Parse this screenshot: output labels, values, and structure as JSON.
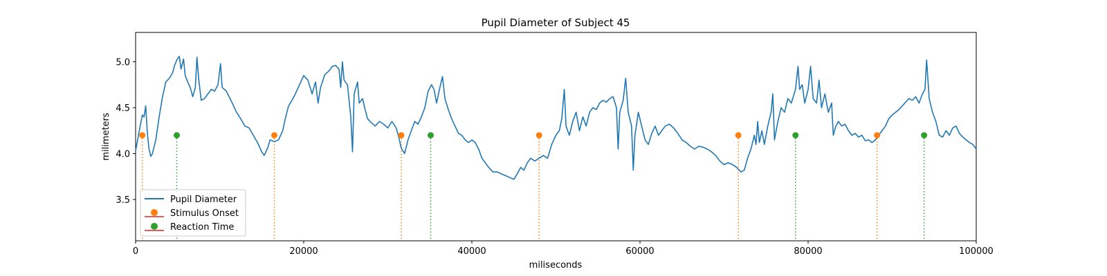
{
  "chart_data": {
    "type": "line",
    "title": "Pupil Diameter of Subject 45",
    "xlabel": "miliseconds",
    "ylabel": "milimeters",
    "xlim": [
      0,
      100000
    ],
    "ylim": [
      3.05,
      5.32
    ],
    "x_ticks": [
      0,
      20000,
      40000,
      60000,
      80000,
      100000
    ],
    "y_ticks": [
      3.5,
      4.0,
      4.5,
      5.0
    ],
    "grid": false,
    "legend_position": "lower-left",
    "colors": {
      "pupil": "#1f77b4",
      "stimulus": "#ff7f0e",
      "reaction": "#2ca02c",
      "stem_base": "#d62728"
    },
    "series": [
      {
        "name": "Pupil Diameter",
        "points": [
          [
            0,
            4.03
          ],
          [
            500,
            4.28
          ],
          [
            800,
            4.42
          ],
          [
            1000,
            4.4
          ],
          [
            1200,
            4.52
          ],
          [
            1400,
            4.22
          ],
          [
            1600,
            4.05
          ],
          [
            1800,
            3.97
          ],
          [
            2000,
            4.0
          ],
          [
            2400,
            4.15
          ],
          [
            2800,
            4.4
          ],
          [
            3200,
            4.62
          ],
          [
            3600,
            4.78
          ],
          [
            4000,
            4.82
          ],
          [
            4400,
            4.88
          ],
          [
            4600,
            4.95
          ],
          [
            4900,
            5.02
          ],
          [
            5200,
            5.06
          ],
          [
            5400,
            4.92
          ],
          [
            5700,
            5.03
          ],
          [
            5900,
            4.85
          ],
          [
            6200,
            4.78
          ],
          [
            6500,
            4.72
          ],
          [
            6800,
            4.62
          ],
          [
            7100,
            4.72
          ],
          [
            7300,
            5.05
          ],
          [
            7500,
            4.82
          ],
          [
            7800,
            4.58
          ],
          [
            8200,
            4.6
          ],
          [
            8600,
            4.65
          ],
          [
            9000,
            4.7
          ],
          [
            9400,
            4.68
          ],
          [
            9800,
            4.75
          ],
          [
            10100,
            4.98
          ],
          [
            10300,
            4.72
          ],
          [
            10800,
            4.68
          ],
          [
            11500,
            4.55
          ],
          [
            12000,
            4.45
          ],
          [
            12500,
            4.38
          ],
          [
            13000,
            4.3
          ],
          [
            13500,
            4.28
          ],
          [
            14000,
            4.2
          ],
          [
            14500,
            4.12
          ],
          [
            15000,
            4.02
          ],
          [
            15300,
            3.98
          ],
          [
            15700,
            4.06
          ],
          [
            16000,
            4.15
          ],
          [
            16500,
            4.13
          ],
          [
            17000,
            4.15
          ],
          [
            17500,
            4.25
          ],
          [
            17800,
            4.38
          ],
          [
            18200,
            4.52
          ],
          [
            18600,
            4.58
          ],
          [
            19000,
            4.65
          ],
          [
            19500,
            4.75
          ],
          [
            20000,
            4.85
          ],
          [
            20500,
            4.8
          ],
          [
            21000,
            4.65
          ],
          [
            21400,
            4.78
          ],
          [
            21700,
            4.55
          ],
          [
            22000,
            4.72
          ],
          [
            22500,
            4.86
          ],
          [
            23000,
            4.9
          ],
          [
            23400,
            4.95
          ],
          [
            23800,
            4.96
          ],
          [
            24200,
            4.92
          ],
          [
            24400,
            4.72
          ],
          [
            24600,
            5.0
          ],
          [
            24800,
            4.8
          ],
          [
            25200,
            4.75
          ],
          [
            25600,
            4.4
          ],
          [
            25800,
            4.02
          ],
          [
            26000,
            4.65
          ],
          [
            26400,
            4.78
          ],
          [
            26600,
            4.55
          ],
          [
            27000,
            4.6
          ],
          [
            27300,
            4.48
          ],
          [
            27600,
            4.38
          ],
          [
            28000,
            4.34
          ],
          [
            28500,
            4.3
          ],
          [
            29000,
            4.35
          ],
          [
            29500,
            4.32
          ],
          [
            30000,
            4.28
          ],
          [
            30500,
            4.35
          ],
          [
            31000,
            4.28
          ],
          [
            31300,
            4.18
          ],
          [
            31600,
            4.06
          ],
          [
            32000,
            4.0
          ],
          [
            32400,
            4.15
          ],
          [
            32800,
            4.25
          ],
          [
            33200,
            4.35
          ],
          [
            33600,
            4.32
          ],
          [
            34000,
            4.4
          ],
          [
            34400,
            4.5
          ],
          [
            34800,
            4.68
          ],
          [
            35200,
            4.75
          ],
          [
            35500,
            4.7
          ],
          [
            35800,
            4.55
          ],
          [
            36200,
            4.72
          ],
          [
            36500,
            4.84
          ],
          [
            36800,
            4.6
          ],
          [
            37200,
            4.48
          ],
          [
            37600,
            4.38
          ],
          [
            38000,
            4.3
          ],
          [
            38400,
            4.22
          ],
          [
            38800,
            4.2
          ],
          [
            39200,
            4.15
          ],
          [
            39600,
            4.12
          ],
          [
            40000,
            4.15
          ],
          [
            40400,
            4.12
          ],
          [
            40800,
            4.05
          ],
          [
            41200,
            3.95
          ],
          [
            41600,
            3.9
          ],
          [
            42000,
            3.85
          ],
          [
            42500,
            3.8
          ],
          [
            43000,
            3.8
          ],
          [
            43500,
            3.78
          ],
          [
            44000,
            3.76
          ],
          [
            44500,
            3.74
          ],
          [
            45000,
            3.72
          ],
          [
            45400,
            3.78
          ],
          [
            45800,
            3.85
          ],
          [
            46200,
            3.82
          ],
          [
            46600,
            3.9
          ],
          [
            47000,
            3.95
          ],
          [
            47500,
            3.92
          ],
          [
            48000,
            3.95
          ],
          [
            48500,
            3.98
          ],
          [
            49000,
            3.95
          ],
          [
            49500,
            4.1
          ],
          [
            50000,
            4.2
          ],
          [
            50400,
            4.25
          ],
          [
            50700,
            4.38
          ],
          [
            51000,
            4.7
          ],
          [
            51200,
            4.3
          ],
          [
            51600,
            4.2
          ],
          [
            52000,
            4.35
          ],
          [
            52400,
            4.45
          ],
          [
            52800,
            4.25
          ],
          [
            53200,
            4.4
          ],
          [
            53600,
            4.3
          ],
          [
            54000,
            4.45
          ],
          [
            54400,
            4.5
          ],
          [
            54800,
            4.48
          ],
          [
            55200,
            4.55
          ],
          [
            55600,
            4.58
          ],
          [
            56000,
            4.56
          ],
          [
            56400,
            4.6
          ],
          [
            56800,
            4.62
          ],
          [
            57200,
            4.5
          ],
          [
            57400,
            4.05
          ],
          [
            57600,
            4.45
          ],
          [
            58000,
            4.58
          ],
          [
            58300,
            4.82
          ],
          [
            58600,
            4.45
          ],
          [
            59000,
            4.3
          ],
          [
            59200,
            3.82
          ],
          [
            59400,
            4.2
          ],
          [
            59800,
            4.45
          ],
          [
            60200,
            4.3
          ],
          [
            60600,
            4.15
          ],
          [
            61000,
            4.1
          ],
          [
            61400,
            4.22
          ],
          [
            61800,
            4.3
          ],
          [
            62200,
            4.2
          ],
          [
            62600,
            4.25
          ],
          [
            63000,
            4.3
          ],
          [
            63500,
            4.32
          ],
          [
            64000,
            4.28
          ],
          [
            64500,
            4.22
          ],
          [
            65000,
            4.15
          ],
          [
            65500,
            4.12
          ],
          [
            66000,
            4.08
          ],
          [
            66500,
            4.05
          ],
          [
            67000,
            4.08
          ],
          [
            67500,
            4.07
          ],
          [
            68000,
            4.05
          ],
          [
            68500,
            4.02
          ],
          [
            69000,
            3.98
          ],
          [
            69500,
            3.92
          ],
          [
            70000,
            3.88
          ],
          [
            70500,
            3.9
          ],
          [
            71000,
            3.88
          ],
          [
            71500,
            3.85
          ],
          [
            72000,
            3.8
          ],
          [
            72400,
            3.82
          ],
          [
            72800,
            3.95
          ],
          [
            73200,
            4.05
          ],
          [
            73600,
            4.2
          ],
          [
            73800,
            4.1
          ],
          [
            74000,
            4.35
          ],
          [
            74200,
            4.12
          ],
          [
            74500,
            4.25
          ],
          [
            74800,
            4.1
          ],
          [
            75200,
            4.3
          ],
          [
            75600,
            4.45
          ],
          [
            75800,
            4.65
          ],
          [
            76000,
            4.15
          ],
          [
            76400,
            4.35
          ],
          [
            76800,
            4.5
          ],
          [
            77200,
            4.45
          ],
          [
            77600,
            4.6
          ],
          [
            78000,
            4.55
          ],
          [
            78500,
            4.7
          ],
          [
            78800,
            4.95
          ],
          [
            79000,
            4.7
          ],
          [
            79300,
            4.75
          ],
          [
            79600,
            4.55
          ],
          [
            80000,
            4.7
          ],
          [
            80300,
            4.95
          ],
          [
            80600,
            4.6
          ],
          [
            81000,
            4.55
          ],
          [
            81300,
            4.8
          ],
          [
            81600,
            4.5
          ],
          [
            82000,
            4.65
          ],
          [
            82400,
            4.45
          ],
          [
            82800,
            4.55
          ],
          [
            83000,
            4.2
          ],
          [
            83300,
            4.3
          ],
          [
            83600,
            4.35
          ],
          [
            84000,
            4.3
          ],
          [
            84400,
            4.32
          ],
          [
            84800,
            4.25
          ],
          [
            85200,
            4.2
          ],
          [
            85600,
            4.22
          ],
          [
            86000,
            4.18
          ],
          [
            86400,
            4.2
          ],
          [
            86800,
            4.14
          ],
          [
            87200,
            4.15
          ],
          [
            87600,
            4.12
          ],
          [
            88000,
            4.15
          ],
          [
            88400,
            4.2
          ],
          [
            88800,
            4.25
          ],
          [
            89200,
            4.3
          ],
          [
            89600,
            4.38
          ],
          [
            90000,
            4.42
          ],
          [
            90400,
            4.45
          ],
          [
            90800,
            4.48
          ],
          [
            91200,
            4.52
          ],
          [
            91600,
            4.56
          ],
          [
            92000,
            4.6
          ],
          [
            92400,
            4.58
          ],
          [
            92800,
            4.62
          ],
          [
            93200,
            4.55
          ],
          [
            93600,
            4.65
          ],
          [
            93900,
            4.7
          ],
          [
            94100,
            5.02
          ],
          [
            94400,
            4.6
          ],
          [
            94800,
            4.45
          ],
          [
            95200,
            4.35
          ],
          [
            95600,
            4.2
          ],
          [
            96000,
            4.18
          ],
          [
            96400,
            4.25
          ],
          [
            96800,
            4.2
          ],
          [
            97200,
            4.28
          ],
          [
            97600,
            4.3
          ],
          [
            98000,
            4.22
          ],
          [
            98400,
            4.18
          ],
          [
            98800,
            4.15
          ],
          [
            99200,
            4.12
          ],
          [
            99600,
            4.1
          ],
          [
            100000,
            4.05
          ]
        ]
      },
      {
        "name": "Stimulus Onset",
        "x": [
          800,
          16500,
          31600,
          48000,
          71700,
          88200
        ],
        "y": 4.2
      },
      {
        "name": "Reaction Time",
        "x": [
          4900,
          35100,
          78500,
          93800
        ],
        "y": 4.2
      }
    ]
  }
}
